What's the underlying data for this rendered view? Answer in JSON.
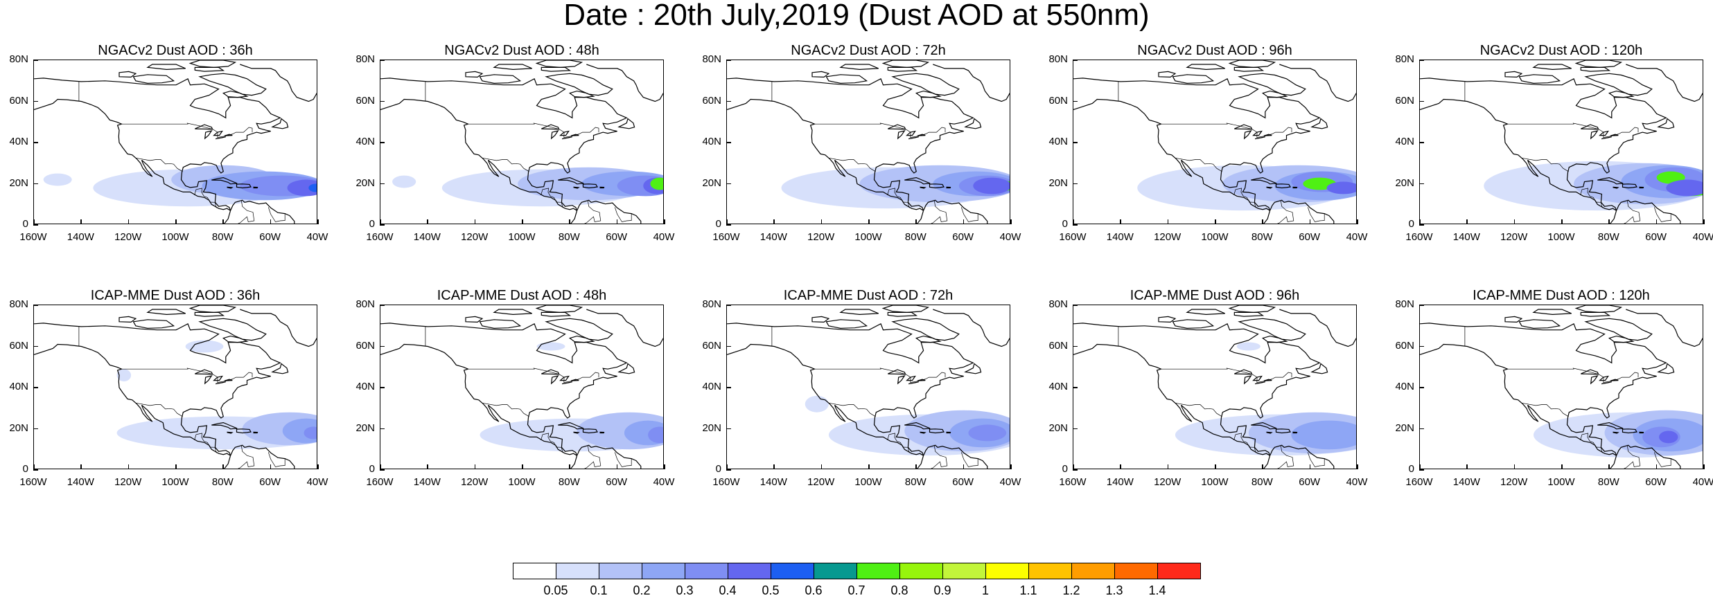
{
  "title": "Date : 20th July,2019 (Dust AOD at 550nm)",
  "lat_labels": [
    "80N",
    "60N",
    "40N",
    "20N",
    "0"
  ],
  "lon_labels": [
    "160W",
    "140W",
    "120W",
    "100W",
    "80W",
    "60W",
    "40W"
  ],
  "panels": [
    {
      "title": "NGACv2 Dust AOD : 36h",
      "plume": "ngac36"
    },
    {
      "title": "NGACv2 Dust AOD : 48h",
      "plume": "ngac48"
    },
    {
      "title": "NGACv2 Dust AOD : 72h",
      "plume": "ngac72"
    },
    {
      "title": "NGACv2 Dust AOD : 96h",
      "plume": "ngac96"
    },
    {
      "title": "NGACv2 Dust AOD : 120h",
      "plume": "ngac120"
    },
    {
      "title": "ICAP-MME Dust AOD : 36h",
      "plume": "icap36"
    },
    {
      "title": "ICAP-MME Dust AOD : 48h",
      "plume": "icap48"
    },
    {
      "title": "ICAP-MME Dust AOD : 72h",
      "plume": "icap72"
    },
    {
      "title": "ICAP-MME Dust AOD : 96h",
      "plume": "icap96"
    },
    {
      "title": "ICAP-MME Dust AOD : 120h",
      "plume": "icap120"
    }
  ],
  "colorbar": {
    "colors": [
      "#ffffff",
      "#d7e0fb",
      "#b3c2f7",
      "#8ea6f5",
      "#7f8ef3",
      "#6467ef",
      "#1d5ff2",
      "#079990",
      "#4ff014",
      "#97f50c",
      "#c2f53a",
      "#fcff00",
      "#ffc300",
      "#ff9d00",
      "#ff6a00",
      "#ff2a1a"
    ],
    "labels": [
      "0.05",
      "0.1",
      "0.2",
      "0.3",
      "0.4",
      "0.5",
      "0.6",
      "0.7",
      "0.8",
      "0.9",
      "1",
      "1.1",
      "1.2",
      "1.3",
      "1.4"
    ]
  }
}
